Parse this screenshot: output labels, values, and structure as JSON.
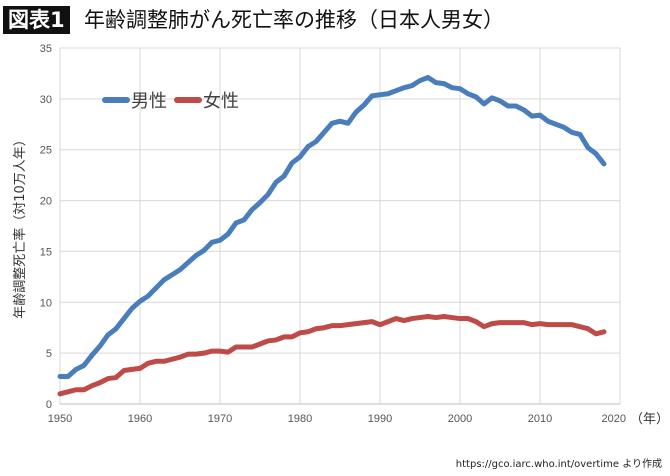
{
  "header": {
    "badge": "図表1",
    "title": "年齢調整肺がん死亡率の推移（日本人男女）"
  },
  "source": "https://gco.iarc.who.int/overtime より作成",
  "chart_data": {
    "type": "line",
    "title": "年齢調整肺がん死亡率の推移（日本人男女）",
    "xlabel": "（年）",
    "ylabel": "年齢調整死亡率（対10万人年）",
    "xlim": [
      1950,
      2020
    ],
    "ylim": [
      0,
      35
    ],
    "xticks": [
      1950,
      1960,
      1970,
      1980,
      1990,
      2000,
      2010,
      2020
    ],
    "yticks": [
      0,
      5,
      10,
      15,
      20,
      25,
      30,
      35
    ],
    "grid": true,
    "legend_placement": "top-left",
    "x_start": 1950,
    "series": [
      {
        "name": "男性",
        "color": "#4a7ebb",
        "values": [
          2.7,
          2.7,
          3.4,
          3.8,
          4.8,
          5.7,
          6.8,
          7.4,
          8.4,
          9.4,
          10.1,
          10.6,
          11.4,
          12.2,
          12.7,
          13.2,
          13.9,
          14.6,
          15.1,
          15.9,
          16.1,
          16.7,
          17.8,
          18.1,
          19.1,
          19.8,
          20.6,
          21.8,
          22.4,
          23.7,
          24.3,
          25.3,
          25.8,
          26.7,
          27.6,
          27.8,
          27.6,
          28.7,
          29.4,
          30.3,
          30.4,
          30.5,
          30.8,
          31.1,
          31.3,
          31.8,
          32.1,
          31.6,
          31.5,
          31.1,
          31.0,
          30.5,
          30.2,
          29.5,
          30.1,
          29.8,
          29.3,
          29.3,
          28.9,
          28.3,
          28.4,
          27.8,
          27.5,
          27.2,
          26.7,
          26.5,
          25.2,
          24.6,
          23.6
        ]
      },
      {
        "name": "女性",
        "color": "#be4b48",
        "values": [
          1.0,
          1.2,
          1.4,
          1.4,
          1.8,
          2.1,
          2.5,
          2.6,
          3.3,
          3.4,
          3.5,
          4.0,
          4.2,
          4.2,
          4.4,
          4.6,
          4.9,
          4.9,
          5.0,
          5.2,
          5.2,
          5.1,
          5.6,
          5.6,
          5.6,
          5.9,
          6.2,
          6.3,
          6.6,
          6.6,
          7.0,
          7.1,
          7.4,
          7.5,
          7.7,
          7.7,
          7.8,
          7.9,
          8.0,
          8.1,
          7.8,
          8.1,
          8.4,
          8.2,
          8.4,
          8.5,
          8.6,
          8.5,
          8.6,
          8.5,
          8.4,
          8.4,
          8.1,
          7.6,
          7.9,
          8.0,
          8.0,
          8.0,
          8.0,
          7.8,
          7.9,
          7.8,
          7.8,
          7.8,
          7.8,
          7.6,
          7.4,
          6.9,
          7.1
        ]
      }
    ]
  }
}
